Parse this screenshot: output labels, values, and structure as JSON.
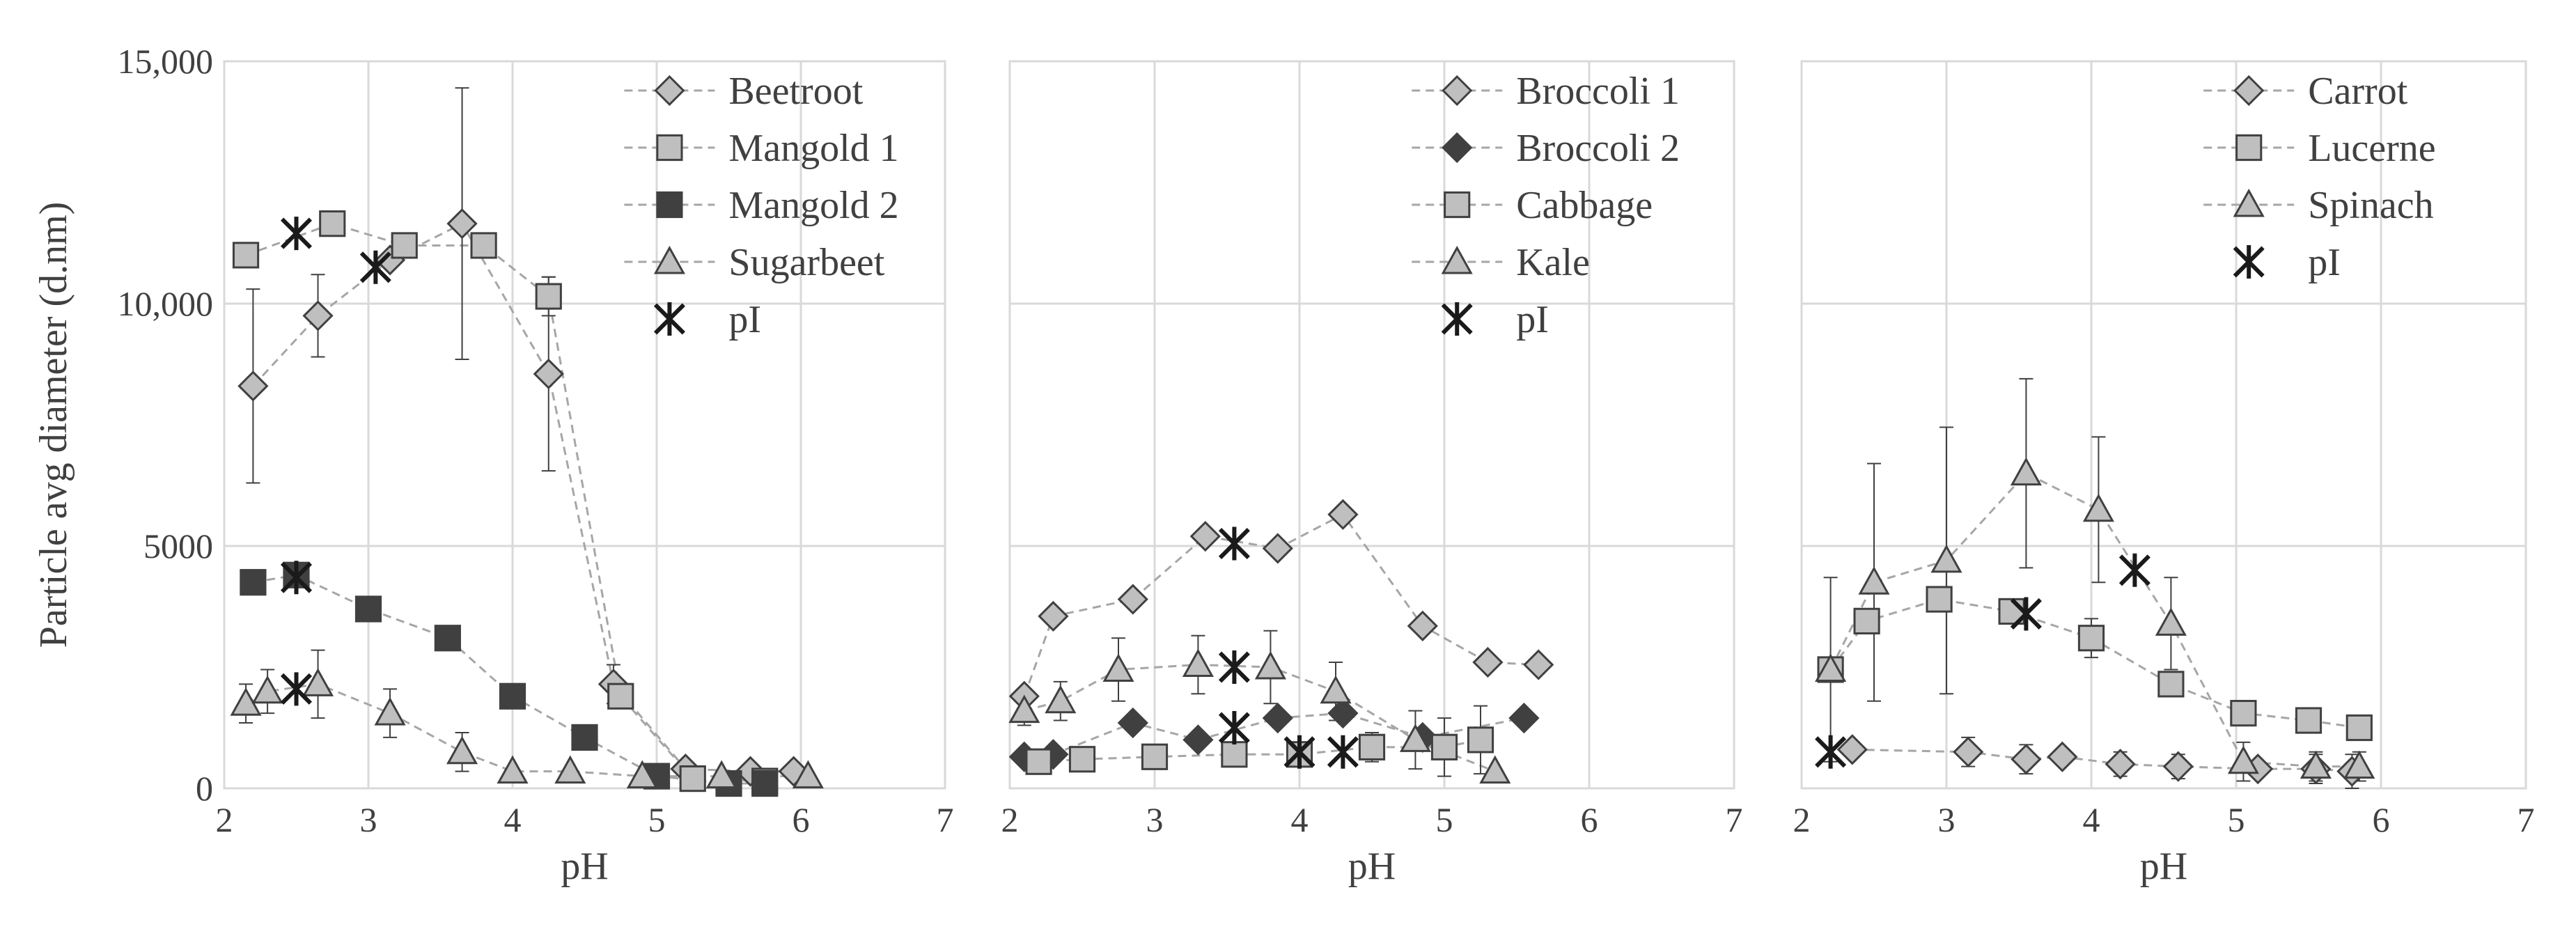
{
  "colors": {
    "light_fill": "#bfbfbf",
    "dark_fill": "#404040",
    "line": "#a6a6a6",
    "marker_stroke": "#404040",
    "grid": "#d9d9d9",
    "text": "#404040",
    "error_bar": "#404040"
  },
  "chart_data": [
    {
      "type": "scatter",
      "title": "",
      "ylabel": "Particle avg diameter (d.nm)",
      "xlabel": "pH",
      "xlim": [
        2,
        7
      ],
      "ylim": [
        0,
        15000
      ],
      "xticks": [
        "2",
        "3",
        "4",
        "5",
        "6",
        "7"
      ],
      "yticks": [
        "0",
        "5000",
        "10,000",
        "15,000"
      ],
      "grid": true,
      "legend_position": "top-right",
      "series": [
        {
          "name": "Beetroot",
          "marker": "diamond",
          "fill": "light",
          "line": true,
          "x": [
            2.2,
            2.65,
            3.15,
            3.65,
            4.25,
            4.7,
            5.2,
            5.65,
            5.95
          ],
          "y": [
            8300,
            9750,
            10900,
            11650,
            8550,
            2150,
            400,
            350,
            350
          ],
          "err": [
            2000,
            850,
            0,
            2800,
            2000,
            400,
            0,
            0,
            0
          ]
        },
        {
          "name": "Mangold 1",
          "marker": "square",
          "fill": "light",
          "line": true,
          "x": [
            2.15,
            2.75,
            3.25,
            3.8,
            4.25,
            4.75,
            5.25,
            5.75
          ],
          "y": [
            11000,
            11650,
            11200,
            11200,
            10150,
            1900,
            200,
            150
          ],
          "err": [
            0,
            0,
            0,
            0,
            400,
            0,
            0,
            0
          ]
        },
        {
          "name": "Mangold 2",
          "marker": "square",
          "fill": "dark",
          "line": true,
          "x": [
            2.2,
            2.5,
            3.0,
            3.55,
            4.0,
            4.5,
            5.0,
            5.5,
            5.75
          ],
          "y": [
            4250,
            4400,
            3700,
            3100,
            1900,
            1050,
            250,
            100,
            100
          ],
          "err": [
            0,
            0,
            0,
            0,
            0,
            0,
            0,
            0,
            0
          ]
        },
        {
          "name": "Sugarbeet",
          "marker": "triangle",
          "fill": "light",
          "line": true,
          "x": [
            2.15,
            2.3,
            2.65,
            3.15,
            3.65,
            4.0,
            4.4,
            4.9,
            5.45,
            6.05
          ],
          "y": [
            1750,
            2000,
            2150,
            1550,
            750,
            350,
            350,
            250,
            250,
            250
          ],
          "err": [
            400,
            450,
            700,
            500,
            400,
            0,
            0,
            0,
            0,
            0
          ]
        },
        {
          "name": "pI",
          "marker": "asterisk",
          "fill": "dark",
          "line": false,
          "x": [
            2.5,
            3.05,
            2.5,
            2.5
          ],
          "y": [
            11450,
            10750,
            4350,
            2050
          ],
          "err": [
            0,
            0,
            0,
            0
          ]
        }
      ]
    },
    {
      "type": "scatter",
      "title": "",
      "ylabel": "",
      "xlabel": "pH",
      "xlim": [
        2,
        7
      ],
      "ylim": [
        0,
        15000
      ],
      "xticks": [
        "2",
        "3",
        "4",
        "5",
        "6",
        "7"
      ],
      "yticks": [],
      "grid": true,
      "legend_position": "top-right",
      "series": [
        {
          "name": "Broccoli 1",
          "marker": "diamond",
          "fill": "light",
          "line": true,
          "x": [
            2.1,
            2.3,
            2.85,
            3.35,
            3.85,
            4.3,
            4.85,
            5.3,
            5.65
          ],
          "y": [
            1900,
            3550,
            3900,
            5200,
            4950,
            5650,
            3350,
            2600,
            2550
          ],
          "err": [
            0,
            0,
            0,
            0,
            0,
            0,
            0,
            0,
            0
          ]
        },
        {
          "name": "Broccoli 2",
          "marker": "diamond",
          "fill": "dark",
          "line": true,
          "x": [
            2.1,
            2.3,
            2.85,
            3.3,
            3.85,
            4.3,
            4.85,
            5.55
          ],
          "y": [
            650,
            700,
            1350,
            1000,
            1450,
            1550,
            1050,
            1450
          ],
          "err": [
            0,
            0,
            0,
            0,
            0,
            0,
            0,
            0
          ]
        },
        {
          "name": "Cabbage",
          "marker": "square",
          "fill": "light",
          "line": true,
          "x": [
            2.2,
            2.5,
            3.0,
            3.55,
            4.0,
            4.5,
            5.0,
            5.25
          ],
          "y": [
            550,
            600,
            650,
            700,
            700,
            850,
            850,
            1000
          ],
          "err": [
            0,
            0,
            0,
            200,
            250,
            300,
            600,
            700
          ]
        },
        {
          "name": "Kale",
          "marker": "triangle",
          "fill": "light",
          "line": true,
          "x": [
            2.1,
            2.35,
            2.75,
            3.3,
            3.8,
            4.25,
            4.8,
            5.35
          ],
          "y": [
            1600,
            1800,
            2450,
            2550,
            2500,
            2000,
            1000,
            350
          ],
          "err": [
            300,
            400,
            650,
            600,
            750,
            600,
            600,
            0
          ]
        },
        {
          "name": "pI",
          "marker": "asterisk",
          "fill": "dark",
          "line": false,
          "x": [
            3.55,
            3.55,
            3.55,
            4.0,
            4.3
          ],
          "y": [
            5050,
            2500,
            1250,
            750,
            750
          ],
          "err": [
            0,
            0,
            0,
            0,
            0
          ]
        }
      ]
    },
    {
      "type": "scatter",
      "title": "",
      "ylabel": "",
      "xlabel": "pH",
      "xlim": [
        2,
        7
      ],
      "ylim": [
        0,
        15000
      ],
      "xticks": [
        "2",
        "3",
        "4",
        "5",
        "6",
        "7"
      ],
      "yticks": [],
      "grid": true,
      "legend_position": "top-right",
      "series": [
        {
          "name": "Carrot",
          "marker": "diamond",
          "fill": "light",
          "line": true,
          "x": [
            2.35,
            3.15,
            3.55,
            3.8,
            4.2,
            4.6,
            5.15,
            5.55,
            5.8
          ],
          "y": [
            800,
            750,
            600,
            650,
            500,
            450,
            400,
            400,
            350
          ],
          "err": [
            0,
            300,
            300,
            0,
            250,
            250,
            0,
            300,
            350
          ]
        },
        {
          "name": "Lucerne",
          "marker": "square",
          "fill": "light",
          "line": true,
          "x": [
            2.2,
            2.45,
            2.95,
            3.45,
            4.0,
            4.55,
            5.05,
            5.5,
            5.85
          ],
          "y": [
            2450,
            3450,
            3900,
            3650,
            3100,
            2150,
            1550,
            1400,
            1250
          ],
          "err": [
            1900,
            0,
            0,
            0,
            400,
            0,
            0,
            0,
            0
          ]
        },
        {
          "name": "Spinach",
          "marker": "triangle",
          "fill": "light",
          "line": true,
          "x": [
            2.2,
            2.5,
            3.0,
            3.55,
            4.05,
            4.55,
            5.05,
            5.55,
            5.85
          ],
          "y": [
            2450,
            4250,
            4700,
            6500,
            5750,
            3400,
            550,
            450,
            450
          ],
          "err": [
            0,
            2450,
            2750,
            1950,
            1500,
            950,
            400,
            300,
            300
          ]
        },
        {
          "name": "pI",
          "marker": "asterisk",
          "fill": "dark",
          "line": false,
          "x": [
            2.2,
            3.55,
            4.3
          ],
          "y": [
            750,
            3600,
            4500
          ],
          "err": [
            0,
            0,
            0
          ]
        }
      ]
    }
  ]
}
